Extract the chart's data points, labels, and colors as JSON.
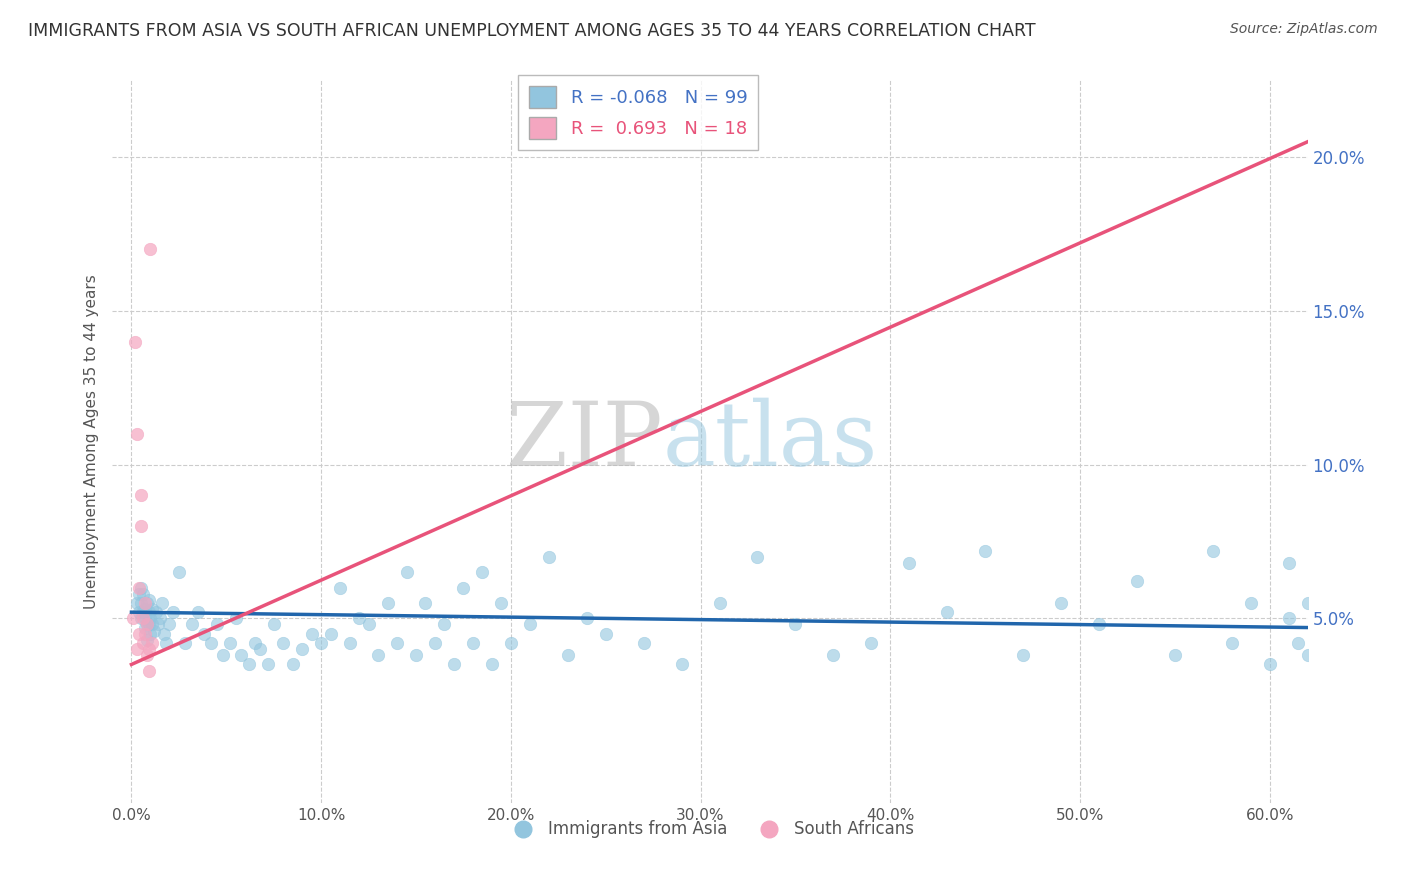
{
  "title": "IMMIGRANTS FROM ASIA VS SOUTH AFRICAN UNEMPLOYMENT AMONG AGES 35 TO 44 YEARS CORRELATION CHART",
  "source": "Source: ZipAtlas.com",
  "ylabel": "Unemployment Among Ages 35 to 44 years",
  "xlabel_ticks": [
    "0.0%",
    "10.0%",
    "20.0%",
    "30.0%",
    "40.0%",
    "50.0%",
    "60.0%"
  ],
  "xlabel_vals": [
    0.0,
    0.1,
    0.2,
    0.3,
    0.4,
    0.5,
    0.6
  ],
  "ylabel_ticks_right": [
    "5.0%",
    "10.0%",
    "15.0%",
    "20.0%"
  ],
  "ylabel_vals_right": [
    0.05,
    0.1,
    0.15,
    0.2
  ],
  "xlim": [
    -0.01,
    0.62
  ],
  "ylim": [
    -0.01,
    0.225
  ],
  "legend_r_blue": "-0.068",
  "legend_n_blue": "99",
  "legend_r_pink": "0.693",
  "legend_n_pink": "18",
  "blue_color": "#92C5DE",
  "pink_color": "#F4A6C0",
  "blue_line_color": "#2166AC",
  "pink_line_color": "#E8537A",
  "watermark_zip": "ZIP",
  "watermark_atlas": "atlas",
  "watermark_color_zip": "#BBBBBB",
  "watermark_color_atlas": "#92C5DE",
  "grid_color": "#CCCCCC",
  "blue_scatter_x": [
    0.003,
    0.004,
    0.004,
    0.005,
    0.005,
    0.005,
    0.006,
    0.006,
    0.007,
    0.007,
    0.007,
    0.008,
    0.008,
    0.008,
    0.009,
    0.009,
    0.009,
    0.01,
    0.01,
    0.011,
    0.011,
    0.012,
    0.013,
    0.014,
    0.015,
    0.016,
    0.017,
    0.018,
    0.02,
    0.022,
    0.025,
    0.028,
    0.032,
    0.035,
    0.038,
    0.042,
    0.045,
    0.048,
    0.052,
    0.055,
    0.058,
    0.062,
    0.065,
    0.068,
    0.072,
    0.075,
    0.08,
    0.085,
    0.09,
    0.095,
    0.1,
    0.105,
    0.11,
    0.115,
    0.12,
    0.125,
    0.13,
    0.135,
    0.14,
    0.145,
    0.15,
    0.155,
    0.16,
    0.165,
    0.17,
    0.175,
    0.18,
    0.185,
    0.19,
    0.195,
    0.2,
    0.21,
    0.22,
    0.23,
    0.24,
    0.25,
    0.27,
    0.29,
    0.31,
    0.33,
    0.35,
    0.37,
    0.39,
    0.41,
    0.43,
    0.45,
    0.47,
    0.49,
    0.51,
    0.53,
    0.55,
    0.57,
    0.58,
    0.59,
    0.6,
    0.61,
    0.61,
    0.615,
    0.62,
    0.62
  ],
  "blue_scatter_y": [
    0.055,
    0.058,
    0.052,
    0.06,
    0.055,
    0.05,
    0.052,
    0.058,
    0.05,
    0.053,
    0.047,
    0.055,
    0.048,
    0.043,
    0.052,
    0.048,
    0.056,
    0.05,
    0.045,
    0.053,
    0.048,
    0.046,
    0.052,
    0.048,
    0.05,
    0.055,
    0.045,
    0.042,
    0.048,
    0.052,
    0.065,
    0.042,
    0.048,
    0.052,
    0.045,
    0.042,
    0.048,
    0.038,
    0.042,
    0.05,
    0.038,
    0.035,
    0.042,
    0.04,
    0.035,
    0.048,
    0.042,
    0.035,
    0.04,
    0.045,
    0.042,
    0.045,
    0.06,
    0.042,
    0.05,
    0.048,
    0.038,
    0.055,
    0.042,
    0.065,
    0.038,
    0.055,
    0.042,
    0.048,
    0.035,
    0.06,
    0.042,
    0.065,
    0.035,
    0.055,
    0.042,
    0.048,
    0.07,
    0.038,
    0.05,
    0.045,
    0.042,
    0.035,
    0.055,
    0.07,
    0.048,
    0.038,
    0.042,
    0.068,
    0.052,
    0.072,
    0.038,
    0.055,
    0.048,
    0.062,
    0.038,
    0.072,
    0.042,
    0.055,
    0.035,
    0.05,
    0.068,
    0.042,
    0.055,
    0.038
  ],
  "pink_scatter_x": [
    0.001,
    0.002,
    0.003,
    0.003,
    0.004,
    0.004,
    0.005,
    0.005,
    0.006,
    0.006,
    0.007,
    0.007,
    0.008,
    0.008,
    0.009,
    0.009,
    0.01,
    0.011
  ],
  "pink_scatter_y": [
    0.05,
    0.14,
    0.04,
    0.11,
    0.06,
    0.045,
    0.09,
    0.08,
    0.042,
    0.05,
    0.055,
    0.045,
    0.048,
    0.038,
    0.04,
    0.033,
    0.17,
    0.042
  ],
  "pink_line_x0": 0.0,
  "pink_line_y0": 0.035,
  "pink_line_x1": 0.62,
  "pink_line_y1": 0.205,
  "blue_line_x0": 0.0,
  "blue_line_y0": 0.052,
  "blue_line_x1": 0.62,
  "blue_line_y1": 0.047
}
